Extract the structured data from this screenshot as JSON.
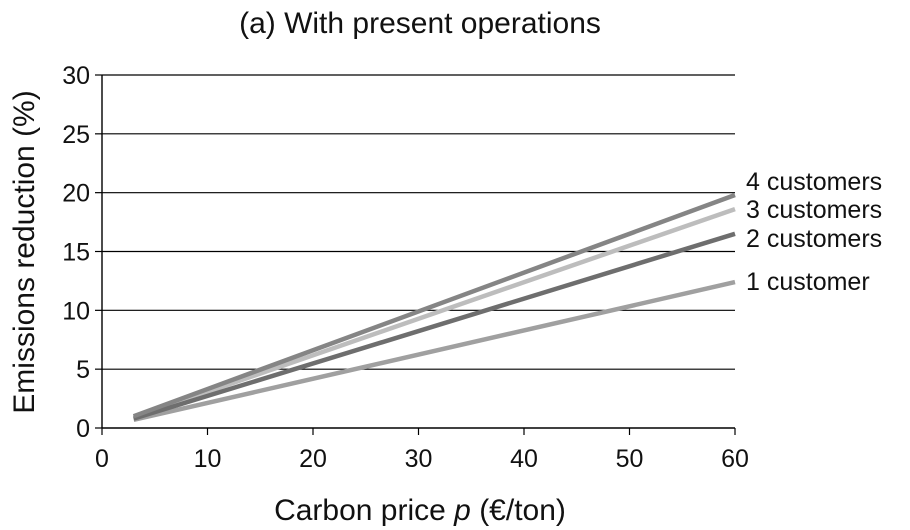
{
  "chart_data": {
    "type": "line",
    "title": "(a) With present operations",
    "xlabel_main": "Carbon price ",
    "xlabel_var": "p",
    "xlabel_unit": " (€/ton)",
    "ylabel": "Emissions reduction (%)",
    "xlim": [
      0,
      60
    ],
    "ylim": [
      0,
      30
    ],
    "xticks": [
      0,
      10,
      20,
      30,
      40,
      50,
      60
    ],
    "yticks": [
      0,
      5,
      10,
      15,
      20,
      25,
      30
    ],
    "grid": "horizontal",
    "legend": "direct labels at right end of lines",
    "series": [
      {
        "name": "4 customers",
        "color": "#858585",
        "x": [
          3,
          60
        ],
        "y": [
          1.0,
          19.8
        ]
      },
      {
        "name": "3 customers",
        "color": "#bdbdbd",
        "x": [
          3,
          60
        ],
        "y": [
          0.9,
          18.6
        ]
      },
      {
        "name": "2 customers",
        "color": "#6e6e6e",
        "x": [
          3,
          60
        ],
        "y": [
          0.8,
          16.5
        ]
      },
      {
        "name": "1 customer",
        "color": "#a0a0a0",
        "x": [
          3,
          60
        ],
        "y": [
          0.7,
          12.4
        ]
      }
    ]
  }
}
